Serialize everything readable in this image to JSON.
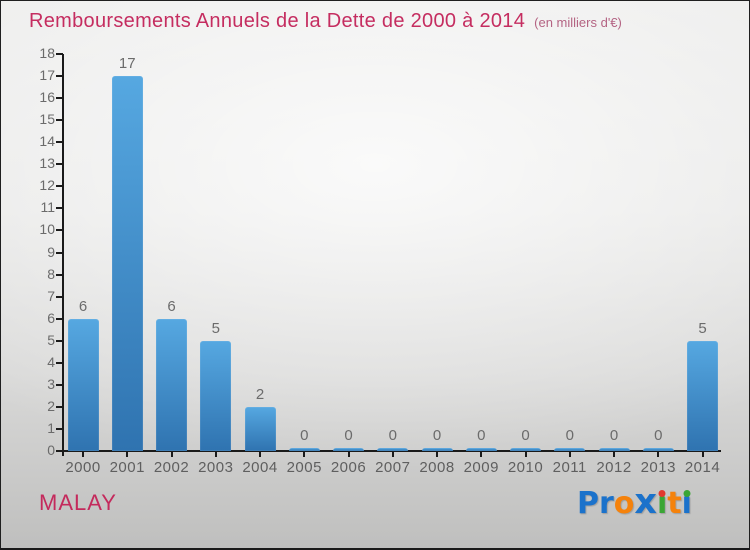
{
  "header": {
    "title": "Remboursements Annuels de la Dette de 2000 à 2014",
    "subtitle": "(en milliers d'€)"
  },
  "footer": {
    "place_name": "MALAY"
  },
  "logo": {
    "name": "Proxiti",
    "letters": [
      {
        "ch": "P",
        "color": "#1b72cb"
      },
      {
        "ch": "r",
        "color": "#1b72cb"
      },
      {
        "ch": "o",
        "color": "#f5820b"
      },
      {
        "ch": "x",
        "color": "#1b72cb",
        "bold": true
      },
      {
        "ch": "i",
        "color": "#3aa635",
        "dot": "#e23a2e"
      },
      {
        "ch": "t",
        "color": "#f5820b"
      },
      {
        "ch": "i",
        "color": "#1b72cb",
        "dot": "#3aa635"
      }
    ]
  },
  "colors": {
    "title_color": "#c52d60",
    "subtitle_color": "#b46483",
    "place_color": "#c42a5c",
    "bar_top": "#56a8e1",
    "bar_bottom": "#2f73b0",
    "axis_color": "#1a1a1a",
    "tick_label_color": "#6b6b6b",
    "value_label_color": "#6b6b6b",
    "year_label_color": "#5f5f5f"
  },
  "chart_data": {
    "type": "bar",
    "title": "Remboursements Annuels de la Dette de 2000 à 2014",
    "subtitle": "(en milliers d'€)",
    "categories": [
      "2000",
      "2001",
      "2002",
      "2003",
      "2004",
      "2005",
      "2006",
      "2007",
      "2008",
      "2009",
      "2010",
      "2011",
      "2012",
      "2013",
      "2014"
    ],
    "values": [
      6,
      17,
      6,
      5,
      2,
      0,
      0,
      0,
      0,
      0,
      0,
      0,
      0,
      0,
      5
    ],
    "xlabel": "",
    "ylabel": "",
    "ylim": [
      0,
      18
    ],
    "ytick_step": 1,
    "grid": false,
    "legend": false,
    "value_labels_shown": true
  }
}
